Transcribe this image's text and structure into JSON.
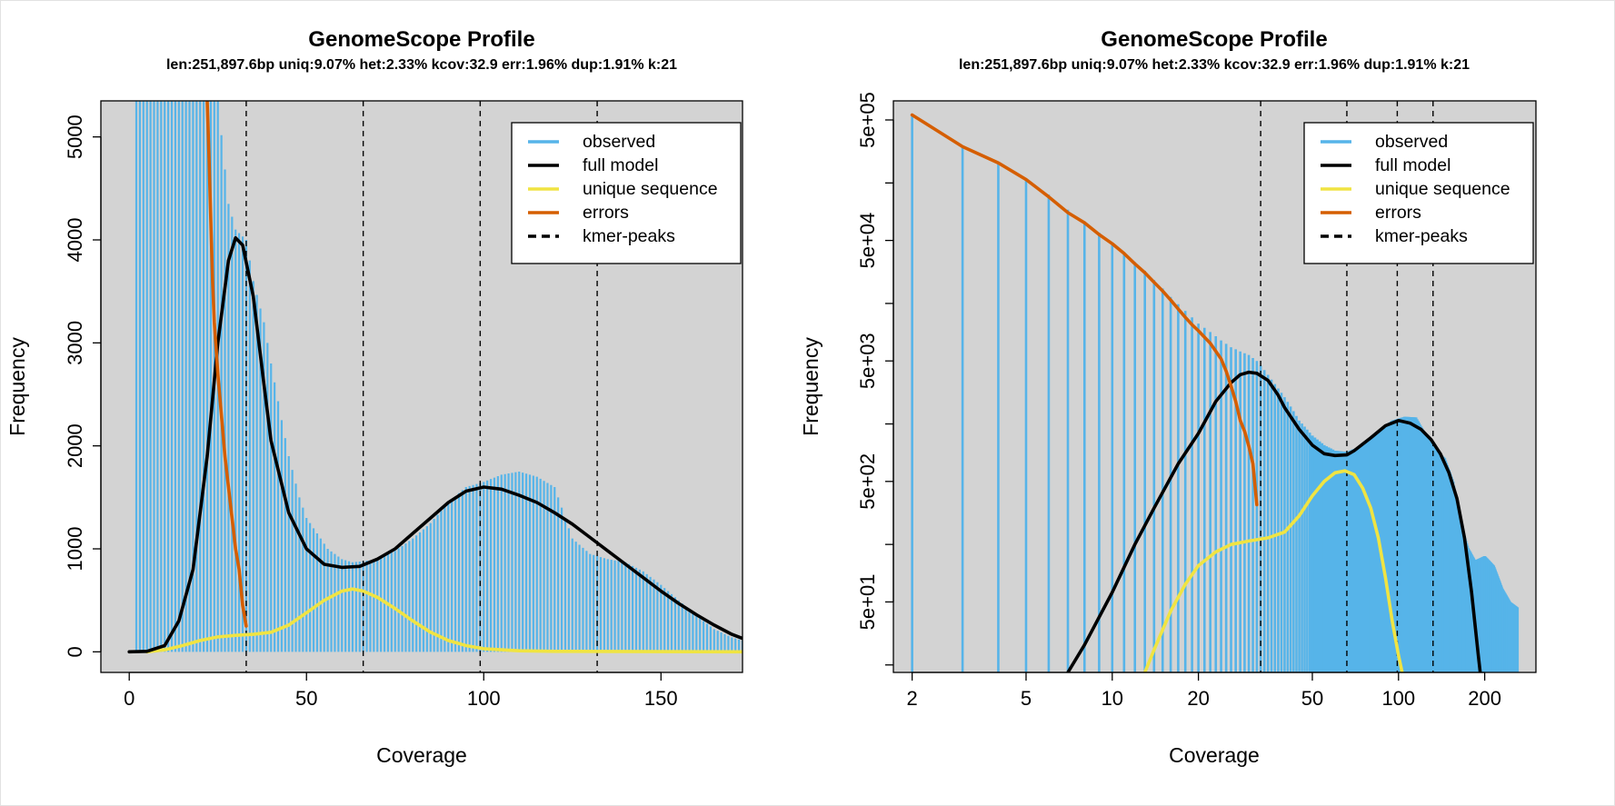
{
  "chart_data": [
    {
      "type": "bar",
      "title": "GenomeScope Profile",
      "subtitle": "len:251,897.6bp uniq:9.07%  het:2.33% kcov:32.9 err:1.96%  dup:1.91%  k:21",
      "xlabel": "Coverage",
      "ylabel": "Frequency",
      "x_scale": "linear",
      "y_scale": "linear",
      "xlim": [
        -8,
        173
      ],
      "ylim": [
        -200,
        5350
      ],
      "x_ticks": [
        0,
        50,
        100,
        150
      ],
      "y_ticks": [
        0,
        1000,
        2000,
        3000,
        4000,
        5000
      ],
      "background": "#d3d3d3",
      "kmer_peaks": [
        33,
        66,
        99,
        132
      ],
      "legend_position": "top-right",
      "legend": [
        "observed",
        "full model",
        "unique sequence",
        "errors",
        "kmer-peaks"
      ],
      "colors": {
        "observed": "#56b4e9",
        "full_model": "#000000",
        "unique_sequence": "#f0e442",
        "errors": "#d55e00",
        "kmer_peaks": "#000000"
      },
      "series": [
        {
          "name": "observed",
          "points": [
            [
              2,
              5350
            ],
            [
              10,
              5350
            ],
            [
              20,
              5350
            ],
            [
              25,
              5350
            ],
            [
              28,
              4350
            ],
            [
              30,
              4100
            ],
            [
              33,
              4000
            ],
            [
              35,
              3600
            ],
            [
              38,
              3200
            ],
            [
              40,
              2800
            ],
            [
              43,
              2250
            ],
            [
              45,
              1900
            ],
            [
              48,
              1500
            ],
            [
              50,
              1300
            ],
            [
              53,
              1150
            ],
            [
              56,
              1000
            ],
            [
              60,
              900
            ],
            [
              63,
              870
            ],
            [
              66,
              880
            ],
            [
              70,
              900
            ],
            [
              75,
              980
            ],
            [
              80,
              1100
            ],
            [
              85,
              1250
            ],
            [
              90,
              1450
            ],
            [
              95,
              1600
            ],
            [
              100,
              1650
            ],
            [
              105,
              1720
            ],
            [
              110,
              1750
            ],
            [
              115,
              1700
            ],
            [
              120,
              1600
            ],
            [
              125,
              1100
            ],
            [
              130,
              950
            ],
            [
              135,
              900
            ],
            [
              140,
              870
            ],
            [
              145,
              780
            ],
            [
              150,
              650
            ],
            [
              155,
              500
            ],
            [
              160,
              350
            ],
            [
              165,
              220
            ],
            [
              170,
              140
            ],
            [
              173,
              110
            ]
          ]
        },
        {
          "name": "full model",
          "points": [
            [
              0,
              0
            ],
            [
              5,
              5
            ],
            [
              10,
              60
            ],
            [
              14,
              300
            ],
            [
              18,
              800
            ],
            [
              22,
              1900
            ],
            [
              25,
              3000
            ],
            [
              28,
              3800
            ],
            [
              30,
              4020
            ],
            [
              32,
              3950
            ],
            [
              35,
              3450
            ],
            [
              38,
              2600
            ],
            [
              40,
              2050
            ],
            [
              45,
              1350
            ],
            [
              50,
              1000
            ],
            [
              55,
              850
            ],
            [
              60,
              820
            ],
            [
              65,
              830
            ],
            [
              70,
              900
            ],
            [
              75,
              1000
            ],
            [
              80,
              1150
            ],
            [
              85,
              1300
            ],
            [
              90,
              1450
            ],
            [
              95,
              1560
            ],
            [
              100,
              1600
            ],
            [
              105,
              1580
            ],
            [
              110,
              1520
            ],
            [
              115,
              1450
            ],
            [
              120,
              1350
            ],
            [
              125,
              1240
            ],
            [
              130,
              1110
            ],
            [
              135,
              980
            ],
            [
              140,
              850
            ],
            [
              145,
              720
            ],
            [
              150,
              590
            ],
            [
              155,
              470
            ],
            [
              160,
              360
            ],
            [
              165,
              260
            ],
            [
              170,
              170
            ],
            [
              173,
              130
            ]
          ]
        },
        {
          "name": "unique sequence",
          "points": [
            [
              5,
              0
            ],
            [
              10,
              20
            ],
            [
              15,
              60
            ],
            [
              20,
              110
            ],
            [
              25,
              145
            ],
            [
              30,
              160
            ],
            [
              35,
              170
            ],
            [
              40,
              190
            ],
            [
              45,
              260
            ],
            [
              50,
              380
            ],
            [
              55,
              500
            ],
            [
              60,
              590
            ],
            [
              63,
              610
            ],
            [
              66,
              590
            ],
            [
              70,
              530
            ],
            [
              75,
              420
            ],
            [
              80,
              300
            ],
            [
              85,
              190
            ],
            [
              90,
              110
            ],
            [
              95,
              60
            ],
            [
              100,
              30
            ],
            [
              110,
              10
            ],
            [
              120,
              5
            ],
            [
              173,
              0
            ]
          ]
        },
        {
          "name": "errors",
          "points": [
            [
              22,
              5350
            ],
            [
              22.5,
              4800
            ],
            [
              23,
              4200
            ],
            [
              23.5,
              3600
            ],
            [
              24,
              3200
            ],
            [
              25,
              2700
            ],
            [
              26,
              2300
            ],
            [
              27,
              1900
            ],
            [
              28,
              1600
            ],
            [
              29,
              1300
            ],
            [
              29.5,
              1150
            ],
            [
              30,
              1000
            ],
            [
              30.5,
              900
            ],
            [
              31,
              800
            ],
            [
              32,
              450
            ],
            [
              33,
              250
            ]
          ]
        }
      ]
    },
    {
      "type": "bar",
      "title": "GenomeScope Profile",
      "subtitle": "len:251,897.6bp uniq:9.07%  het:2.33% kcov:32.9 err:1.96%  dup:1.91%  k:21",
      "xlabel": "Coverage",
      "ylabel": "Frequency",
      "x_scale": "log",
      "y_scale": "log",
      "xlim": [
        1.72,
        302
      ],
      "ylim": [
        13,
        720000
      ],
      "x_ticks": [
        2,
        5,
        10,
        20,
        50,
        100,
        200
      ],
      "y_ticks": [
        50,
        500,
        5000,
        50000,
        500000
      ],
      "y_tick_labels": [
        "5e+01",
        "5e+02",
        "5e+03",
        "5e+04",
        "5e+05"
      ],
      "background": "#d3d3d3",
      "kmer_peaks": [
        33,
        66,
        99,
        132
      ],
      "legend_position": "top-right",
      "legend": [
        "observed",
        "full model",
        "unique sequence",
        "errors",
        "kmer-peaks"
      ],
      "colors": {
        "observed": "#56b4e9",
        "full_model": "#000000",
        "unique_sequence": "#f0e442",
        "errors": "#d55e00",
        "kmer_peaks": "#000000"
      },
      "series": [
        {
          "name": "observed",
          "points": [
            [
              2,
              550000
            ],
            [
              3,
              300000
            ],
            [
              4,
              220000
            ],
            [
              5,
              160000
            ],
            [
              6,
              120000
            ],
            [
              7,
              90000
            ],
            [
              8,
              72000
            ],
            [
              9,
              58000
            ],
            [
              10,
              48000
            ],
            [
              11,
              40000
            ],
            [
              12,
              33000
            ],
            [
              13,
              28000
            ],
            [
              14,
              23500
            ],
            [
              15,
              20000
            ],
            [
              16,
              17000
            ],
            [
              17,
              14800
            ],
            [
              18,
              13000
            ],
            [
              19,
              11500
            ],
            [
              20,
              10200
            ],
            [
              22,
              8700
            ],
            [
              24,
              7400
            ],
            [
              26,
              6500
            ],
            [
              28,
              6000
            ],
            [
              30,
              5600
            ],
            [
              32,
              5000
            ],
            [
              34,
              4200
            ],
            [
              36,
              3500
            ],
            [
              40,
              2500
            ],
            [
              45,
              1600
            ],
            [
              50,
              1200
            ],
            [
              55,
              1000
            ],
            [
              60,
              900
            ],
            [
              66,
              880
            ],
            [
              75,
              1000
            ],
            [
              85,
              1300
            ],
            [
              95,
              1600
            ],
            [
              105,
              1720
            ],
            [
              115,
              1700
            ],
            [
              125,
              1200
            ],
            [
              135,
              900
            ],
            [
              145,
              780
            ],
            [
              155,
              500
            ],
            [
              165,
              220
            ],
            [
              175,
              140
            ],
            [
              185,
              110
            ],
            [
              200,
              120
            ],
            [
              215,
              100
            ],
            [
              230,
              65
            ],
            [
              245,
              50
            ],
            [
              260,
              45
            ]
          ]
        },
        {
          "name": "full model",
          "points": [
            [
              7,
              13
            ],
            [
              8,
              22
            ],
            [
              10,
              60
            ],
            [
              12,
              150
            ],
            [
              14,
              300
            ],
            [
              17,
              700
            ],
            [
              20,
              1250
            ],
            [
              23,
              2300
            ],
            [
              26,
              3300
            ],
            [
              28,
              3850
            ],
            [
              30,
              4030
            ],
            [
              32,
              3950
            ],
            [
              35,
              3450
            ],
            [
              38,
              2600
            ],
            [
              40,
              2050
            ],
            [
              45,
              1350
            ],
            [
              50,
              1000
            ],
            [
              55,
              850
            ],
            [
              60,
              820
            ],
            [
              66,
              830
            ],
            [
              70,
              900
            ],
            [
              80,
              1150
            ],
            [
              90,
              1450
            ],
            [
              100,
              1600
            ],
            [
              110,
              1520
            ],
            [
              120,
              1350
            ],
            [
              130,
              1110
            ],
            [
              140,
              850
            ],
            [
              150,
              590
            ],
            [
              160,
              360
            ],
            [
              170,
              170
            ],
            [
              180,
              60
            ],
            [
              190,
              18
            ],
            [
              193,
              13
            ]
          ]
        },
        {
          "name": "unique sequence",
          "points": [
            [
              13,
              13
            ],
            [
              14,
              20
            ],
            [
              16,
              42
            ],
            [
              18,
              70
            ],
            [
              20,
              100
            ],
            [
              23,
              130
            ],
            [
              26,
              150
            ],
            [
              30,
              160
            ],
            [
              35,
              170
            ],
            [
              40,
              190
            ],
            [
              45,
              260
            ],
            [
              50,
              380
            ],
            [
              55,
              500
            ],
            [
              60,
              590
            ],
            [
              65,
              612
            ],
            [
              70,
              570
            ],
            [
              75,
              440
            ],
            [
              80,
              300
            ],
            [
              85,
              170
            ],
            [
              90,
              80
            ],
            [
              95,
              35
            ],
            [
              100,
              18
            ],
            [
              103,
              13
            ]
          ]
        },
        {
          "name": "errors",
          "points": [
            [
              2,
              550000
            ],
            [
              3,
              300000
            ],
            [
              4,
              220000
            ],
            [
              5,
              160000
            ],
            [
              6,
              115000
            ],
            [
              7,
              85000
            ],
            [
              8,
              70000
            ],
            [
              9,
              56000
            ],
            [
              10,
              47000
            ],
            [
              11,
              39000
            ],
            [
              12,
              32000
            ],
            [
              13,
              27000
            ],
            [
              14,
              22500
            ],
            [
              15,
              19000
            ],
            [
              16,
              16000
            ],
            [
              17,
              13500
            ],
            [
              18,
              11500
            ],
            [
              19,
              10000
            ],
            [
              20,
              8900
            ],
            [
              22,
              7000
            ],
            [
              24,
              5200
            ],
            [
              25,
              4100
            ],
            [
              26,
              3100
            ],
            [
              27,
              2300
            ],
            [
              28,
              1600
            ],
            [
              29,
              1300
            ],
            [
              30,
              980
            ],
            [
              31,
              700
            ],
            [
              32,
              320
            ]
          ]
        }
      ]
    }
  ]
}
